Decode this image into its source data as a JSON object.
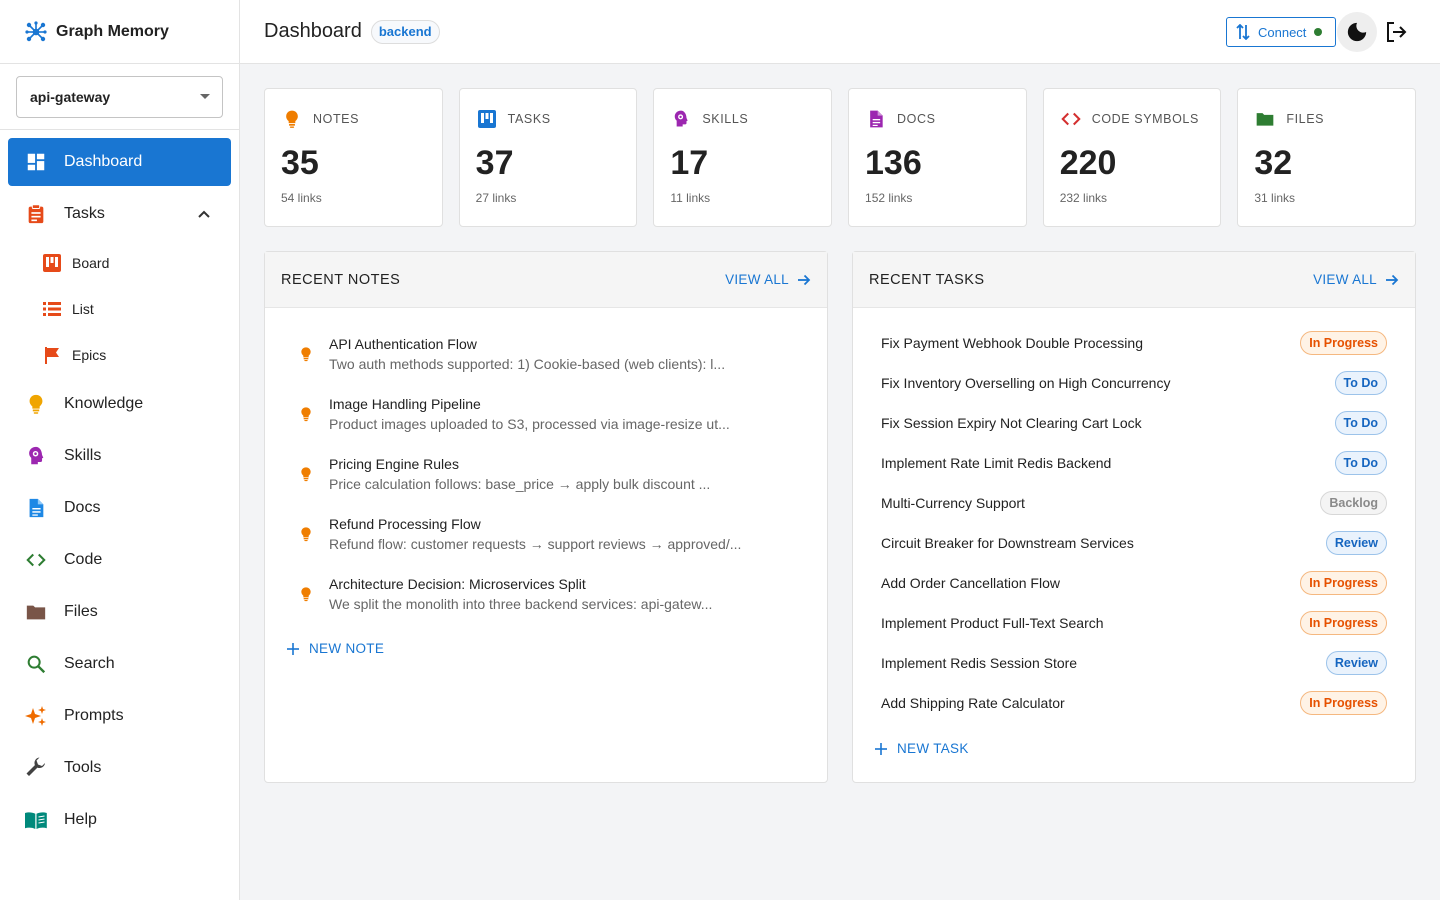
{
  "brand": {
    "title": "Graph Memory"
  },
  "project": {
    "selected": "api-gateway"
  },
  "sidebar": {
    "items": [
      {
        "label": "Dashboard",
        "icon": "dashboard-icon"
      },
      {
        "label": "Tasks",
        "icon": "clipboard-icon"
      },
      {
        "label": "Knowledge",
        "icon": "lightbulb-icon"
      },
      {
        "label": "Skills",
        "icon": "skills-icon"
      },
      {
        "label": "Docs",
        "icon": "document-icon"
      },
      {
        "label": "Code",
        "icon": "code-icon"
      },
      {
        "label": "Files",
        "icon": "folder-icon"
      },
      {
        "label": "Search",
        "icon": "search-icon"
      },
      {
        "label": "Prompts",
        "icon": "sparkle-icon"
      },
      {
        "label": "Tools",
        "icon": "wrench-icon"
      },
      {
        "label": "Help",
        "icon": "book-icon"
      }
    ],
    "task_sub": [
      {
        "label": "Board",
        "icon": "board-icon"
      },
      {
        "label": "List",
        "icon": "list-icon"
      },
      {
        "label": "Epics",
        "icon": "flag-icon"
      }
    ]
  },
  "header": {
    "title": "Dashboard",
    "chip": "backend",
    "connect_label": "Connect"
  },
  "stats": [
    {
      "label": "NOTES",
      "value": "35",
      "links": "54 links",
      "color": "#ef7d00"
    },
    {
      "label": "TASKS",
      "value": "37",
      "links": "27 links",
      "color": "#1976d2"
    },
    {
      "label": "SKILLS",
      "value": "17",
      "links": "11 links",
      "color": "#9c27b0"
    },
    {
      "label": "DOCS",
      "value": "136",
      "links": "152 links",
      "color": "#9c27b0"
    },
    {
      "label": "CODE SYMBOLS",
      "value": "220",
      "links": "232 links",
      "color": "#d32f2f"
    },
    {
      "label": "FILES",
      "value": "32",
      "links": "31 links",
      "color": "#2e7d32"
    }
  ],
  "recent_notes": {
    "title": "RECENT NOTES",
    "view_all": "VIEW ALL",
    "new_label": "NEW NOTE",
    "items": [
      {
        "title": "API Authentication Flow",
        "snippet": "Two auth methods supported: 1) Cookie-based (web clients): l..."
      },
      {
        "title": "Image Handling Pipeline",
        "snippet": "Product images uploaded to S3, processed via image-resize ut..."
      },
      {
        "title": "Pricing Engine Rules",
        "snippet": "Price calculation follows: base_price → apply bulk discount ..."
      },
      {
        "title": "Refund Processing Flow",
        "snippet": "Refund flow: customer requests → support reviews → approved/..."
      },
      {
        "title": "Architecture Decision: Microservices Split",
        "snippet": "We split the monolith into three backend services: api-gatew..."
      }
    ]
  },
  "recent_tasks": {
    "title": "RECENT TASKS",
    "view_all": "VIEW ALL",
    "new_label": "NEW TASK",
    "items": [
      {
        "title": "Fix Payment Webhook Double Processing",
        "status": "In Progress"
      },
      {
        "title": "Fix Inventory Overselling on High Concurrency",
        "status": "To Do"
      },
      {
        "title": "Fix Session Expiry Not Clearing Cart Lock",
        "status": "To Do"
      },
      {
        "title": "Implement Rate Limit Redis Backend",
        "status": "To Do"
      },
      {
        "title": "Multi-Currency Support",
        "status": "Backlog"
      },
      {
        "title": "Circuit Breaker for Downstream Services",
        "status": "Review"
      },
      {
        "title": "Add Order Cancellation Flow",
        "status": "In Progress"
      },
      {
        "title": "Implement Product Full-Text Search",
        "status": "In Progress"
      },
      {
        "title": "Implement Redis Session Store",
        "status": "Review"
      },
      {
        "title": "Add Shipping Rate Calculator",
        "status": "In Progress"
      }
    ]
  }
}
